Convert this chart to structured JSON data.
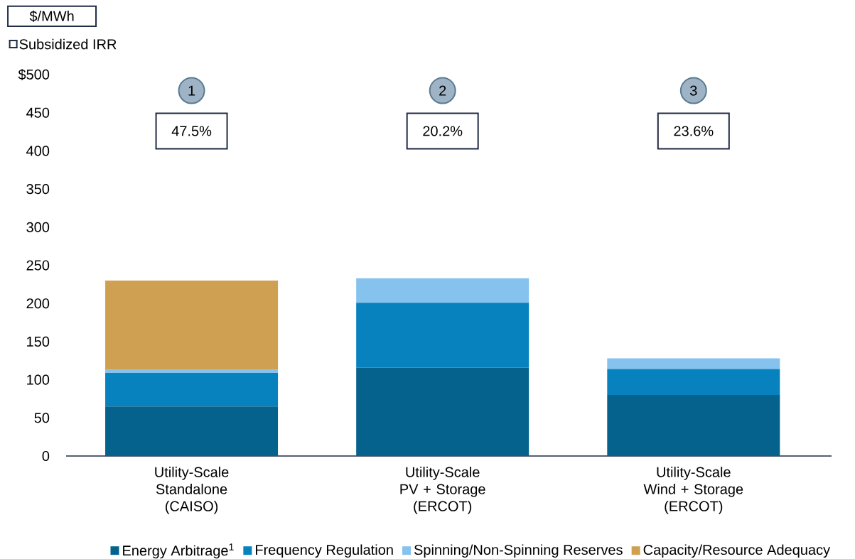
{
  "chart_data": {
    "type": "bar",
    "stacked": true,
    "ylabel": "$/MWh",
    "categories": [
      "Utility-Scale Standalone (CAISO)",
      "Utility-Scale PV + Storage (ERCOT)",
      "Utility-Scale Wind + Storage (ERCOT)"
    ],
    "series": [
      {
        "name": "Energy Arbitrage$^{1}$",
        "color": "#04628c",
        "values": [
          65,
          116,
          80
        ]
      },
      {
        "name": "Frequency Regulation",
        "color": "#0782bf",
        "values": [
          44,
          85,
          34
        ]
      },
      {
        "name": "Spinning/Non-Spinning Reserves",
        "color": "#85c2ee",
        "values": [
          4,
          32,
          14
        ]
      },
      {
        "name": "Capacity/Resource Adequacy",
        "color": "#cfa052",
        "values": [
          117,
          0,
          0
        ]
      }
    ],
    "ylim": [
      0,
      500
    ],
    "yticks": [
      0,
      50,
      100,
      150,
      200,
      250,
      300,
      350,
      400,
      450,
      {
        "value": 500,
        "label": "$500"
      }
    ],
    "legend": "bottom",
    "grid": false,
    "annotations": [
      "Subsidized IRR",
      "1",
      "47.5%",
      "2",
      "20.2%",
      "3",
      "23.6%"
    ]
  }
}
